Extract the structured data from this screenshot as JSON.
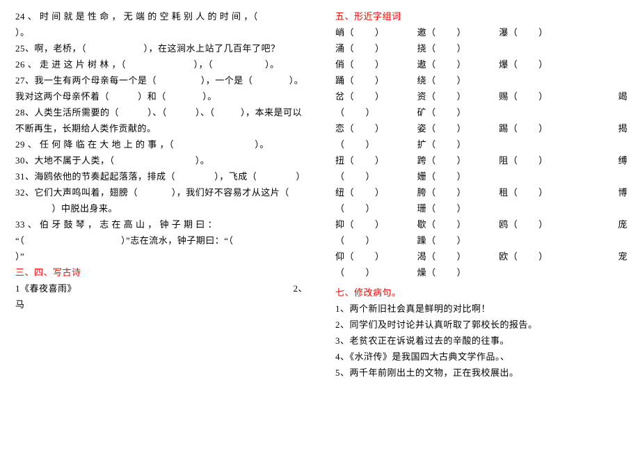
{
  "text_color": "#000000",
  "heading_color": "#ff0000",
  "background_color": "#ffffff",
  "font_size": 13,
  "line_height": 23,
  "left": {
    "q24": "24 、 时 间 就 是 性 命 ， 无 端 的 空 耗 别 人 的 时 间 ，（                                ）。",
    "q25": "25、啊，老桥，（                      ），在这涧水上站了几百年了吧？",
    "q26": "26 、 走 进 这 片 树 林 ，（                          ），（                    ）。",
    "q27": "27、我一生有两个母亲每一个是（                 ），一个是（              ）。我对这两个母亲怀着（           ）和（              ）。",
    "q28": "28、人类生活所需要的（           ）、（           ）、（          ），本来是可以不断再生，长期给人类作贡献的。",
    "q29": "29 、 任 何 降 临 在 大 地 上 的 事 ，（                               ）。",
    "q30": "30、大地不属于人类，（                               ）。",
    "q31": "31、海鸥依他的节奏起起落落，排成（               ），飞成（               ）",
    "q32": "32、它们大声鸣叫着，翅膀（             ），我们好不容易才从这片（",
    "q32b": "              ）中脱出身来。",
    "q33a": "33 、 伯 牙 鼓 琴 ， 志 在 高 山 ， 钟 子 期 曰 ：",
    "q33b": "“（                                     ）”志在流水，钟子期曰：“（                                ）”",
    "sec34_title": "三、四、写古诗",
    "poem1": "1《春夜喜雨》",
    "poem2_label": "2、",
    "poem2_char": "马"
  },
  "right": {
    "sec5_title": "五、形近字组词",
    "rows": [
      [
        "峭（        ）",
        "邀（        ）",
        "瀑（        ）"
      ],
      [
        "涌（        ）",
        "挠（        ）",
        ""
      ],
      [
        "俏（        ）",
        "遨（        ）",
        "爆（        ）"
      ],
      [
        "踊（        ）",
        "绕（        ）",
        ""
      ],
      [
        "岔（        ）",
        "资（        ）",
        "赐（        ）",
        "竭"
      ],
      [
        "（        ）",
        "矿（        ）",
        "",
        ""
      ],
      [
        "恋（        ）",
        "姿（        ）",
        "踢（        ）",
        "揭"
      ],
      [
        "（        ）",
        "扩（        ）",
        "",
        ""
      ],
      [
        "",
        "",
        "",
        ""
      ],
      [
        "扭（        ）",
        "跨（        ）",
        "阻（        ）",
        "缚"
      ],
      [
        "（        ）",
        "姗（        ）",
        "",
        ""
      ],
      [
        "纽（        ）",
        "胯（        ）",
        "租（        ）",
        "博"
      ],
      [
        "（        ）",
        "珊（        ）",
        "",
        ""
      ],
      [
        "",
        "",
        "",
        ""
      ],
      [
        "抑（        ）",
        "歇（        ）",
        "鸥（        ）",
        "庞"
      ],
      [
        "（        ）",
        "躁（        ）",
        "",
        ""
      ],
      [
        "仰（        ）",
        "渴（        ）",
        "欧（        ）",
        "宠"
      ],
      [
        "（        ）",
        "燥（        ）",
        "",
        ""
      ]
    ],
    "sec7_title": "七、修改病句。",
    "sentences": [
      "1、两个新旧社会真是鲜明的对比啊！",
      "2、同学们及时讨论并认真听取了郭校长的报告。",
      "3、老贫农正在诉说着过去的辛酸的往事。",
      "4、《水浒传》是我国四大古典文学作品。、",
      "5、两千年前刚出土的文物，正在我校展出。"
    ]
  }
}
